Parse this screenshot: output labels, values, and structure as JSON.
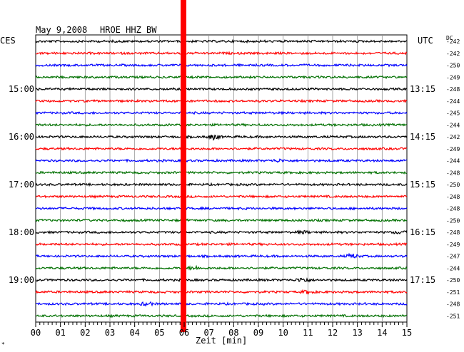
{
  "header": {
    "date": "May 9,2008",
    "station": "HROE HHZ BW",
    "left_tz": "CES",
    "right_tz": "UTC",
    "dc_label": "DC"
  },
  "corner_mark": "*",
  "chart_data": {
    "type": "line",
    "title": "May 9,2008   HROE HHZ BW",
    "xlabel": "Zeit [min]",
    "xlim": [
      0,
      15
    ],
    "x_ticks": [
      "00",
      "01",
      "02",
      "03",
      "04",
      "05",
      "06",
      "07",
      "08",
      "09",
      "10",
      "11",
      "12",
      "13",
      "14",
      "15"
    ],
    "trace_colors": [
      "#000000",
      "#ff0000",
      "#0000ff",
      "#007000"
    ],
    "highlight_minute": 6,
    "highlight_color": "#ff0000",
    "left_hour_labels": [
      "15:00",
      "16:00",
      "17:00",
      "18:00",
      "19:00"
    ],
    "right_hour_labels": [
      "13:15",
      "14:15",
      "15:15",
      "16:15",
      "17:15"
    ],
    "hour_label_rows": [
      4,
      8,
      12,
      16,
      20
    ],
    "dc_offsets": [
      "-242",
      "-242",
      "-250",
      "-249",
      "-248",
      "-244",
      "-245",
      "-244",
      "-242",
      "-249",
      "-244",
      "-248",
      "-250",
      "-248",
      "-248",
      "-250",
      "-248",
      "-249",
      "-247",
      "-244",
      "-250",
      "-251",
      "-248",
      "-251"
    ],
    "events": [
      {
        "row": 8,
        "minute": 7.2,
        "amplitude": 3
      },
      {
        "row": 10,
        "minute": 9.8,
        "amplitude": 1.5
      },
      {
        "row": 16,
        "minute": 10.8,
        "amplitude": 1.5
      },
      {
        "row": 16,
        "minute": 14.7,
        "amplitude": 1.5
      },
      {
        "row": 18,
        "minute": 12.8,
        "amplitude": 2.5
      },
      {
        "row": 19,
        "minute": 6.4,
        "amplitude": 2
      },
      {
        "row": 20,
        "minute": 10.8,
        "amplitude": 3
      },
      {
        "row": 21,
        "minute": 11.0,
        "amplitude": 2
      },
      {
        "row": 22,
        "minute": 4.5,
        "amplitude": 2
      }
    ]
  }
}
